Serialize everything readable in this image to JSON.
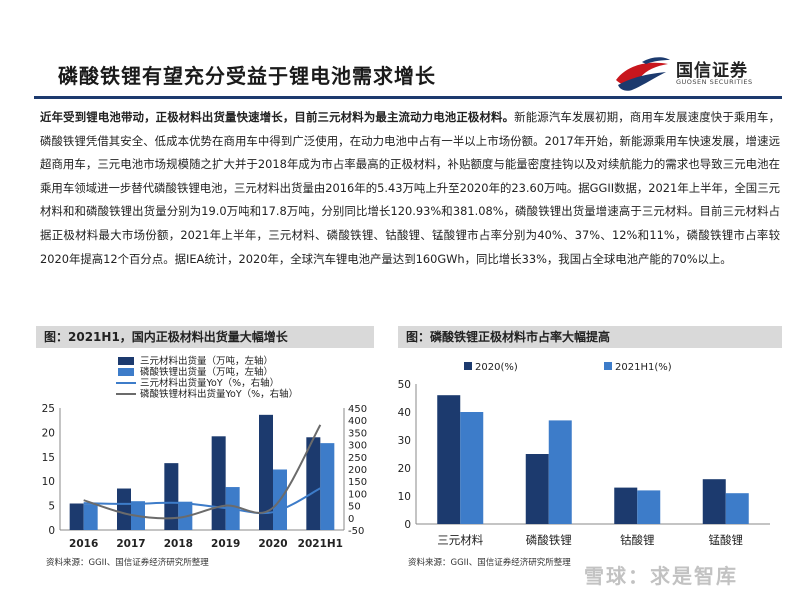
{
  "header": {
    "title": "磷酸铁锂有望充分受益于锂电池需求增长",
    "logo_cn": "国信证券",
    "logo_en": "GUOSEN SECURITIES"
  },
  "body": {
    "lead": "近年受到锂电池带动，正极材料出货量快速增长，目前三元材料为最主流动力电池正极材料。",
    "text": "新能源汽车发展初期，商用车发展速度快于乘用车，磷酸铁锂凭借其安全、低成本优势在商用车中得到广泛使用，在动力电池中占有一半以上市场份额。2017年开始，新能源乘用车快速发展，增速远超商用车，三元电池市场规模随之扩大并于2018年成为市占率最高的正极材料，补贴额度与能量密度挂钩以及对续航能力的需求也导致三元电池在乘用车领域进一步替代磷酸铁锂电池，三元材料出货量由2016年的5.43万吨上升至2020年的23.60万吨。据GGII数据，2021年上半年，全国三元材料和和磷酸铁锂出货量分别为19.0万吨和17.8万吨，分别同比增长120.93%和381.08%，磷酸铁锂出货量增速高于三元材料。目前三元材料占据正极材料最大市场份额，2021年上半年，三元材料、磷酸铁锂、钴酸锂、锰酸锂市占率分别为40%、37%、12%和11%，磷酸铁锂市占率较2020年提高12个百分点。据IEA统计，2020年，全球汽车锂电池产量达到160GWh，同比增长33%，我国占全球电池产能的70%以上。"
  },
  "captions": {
    "left": "图：2021H1，国内正极材料出货量大幅增长",
    "right": "图：磷酸铁锂正极材料市占率大幅提高"
  },
  "sources": {
    "left": "资料来源：GGII、国信证券经济研究所整理",
    "right": "资料来源：GGII、国信证券经济研究所整理"
  },
  "watermark": "雪球：求是智库",
  "colors": {
    "navy": "#1c3a6e",
    "light_blue": "#3d7cc9",
    "grey_line": "#6b6b6b",
    "caption_bg": "#d9d9d9"
  },
  "chart_data": [
    {
      "type": "bar",
      "categories": [
        "2016",
        "2017",
        "2018",
        "2019",
        "2020",
        "2021H1"
      ],
      "series": [
        {
          "name": "三元材料出货量（万吨，左轴）",
          "axis": "left",
          "kind": "bar",
          "color": "#1c3a6e",
          "values": [
            5.43,
            8.5,
            13.7,
            19.2,
            23.6,
            19.0
          ]
        },
        {
          "name": "磷酸铁锂出货量（万吨，左轴）",
          "axis": "left",
          "kind": "bar",
          "color": "#3d7cc9",
          "values": [
            5.3,
            5.9,
            5.8,
            8.8,
            12.4,
            17.8
          ]
        },
        {
          "name": "三元材料出货量YoY（%，右轴）",
          "axis": "right",
          "kind": "line",
          "color": "#3d7cc9",
          "values": [
            60,
            57,
            61,
            40,
            23,
            121
          ]
        },
        {
          "name": "磷酸铁锂材料出货量YoY（%，右轴）",
          "axis": "right",
          "kind": "line",
          "color": "#6b6b6b",
          "values": [
            72,
            12,
            0,
            50,
            41,
            381
          ]
        }
      ],
      "ylim_left": [
        0,
        25
      ],
      "yticks_left": [
        0,
        5,
        10,
        15,
        20,
        25
      ],
      "ylim_right": [
        -50,
        450
      ],
      "yticks_right": [
        -50,
        0,
        50,
        100,
        150,
        200,
        250,
        300,
        350,
        400,
        450
      ],
      "legend": "top-left"
    },
    {
      "type": "bar",
      "categories": [
        "三元材料",
        "磷酸铁锂",
        "钴酸锂",
        "锰酸锂"
      ],
      "series": [
        {
          "name": "2020(%)",
          "color": "#1c3a6e",
          "values": [
            46,
            25,
            13,
            16
          ]
        },
        {
          "name": "2021H1(%)",
          "color": "#3d7cc9",
          "values": [
            40,
            37,
            12,
            11
          ]
        }
      ],
      "ylim": [
        0,
        50
      ],
      "yticks": [
        0,
        10,
        20,
        30,
        40,
        50
      ],
      "legend": "top"
    }
  ]
}
